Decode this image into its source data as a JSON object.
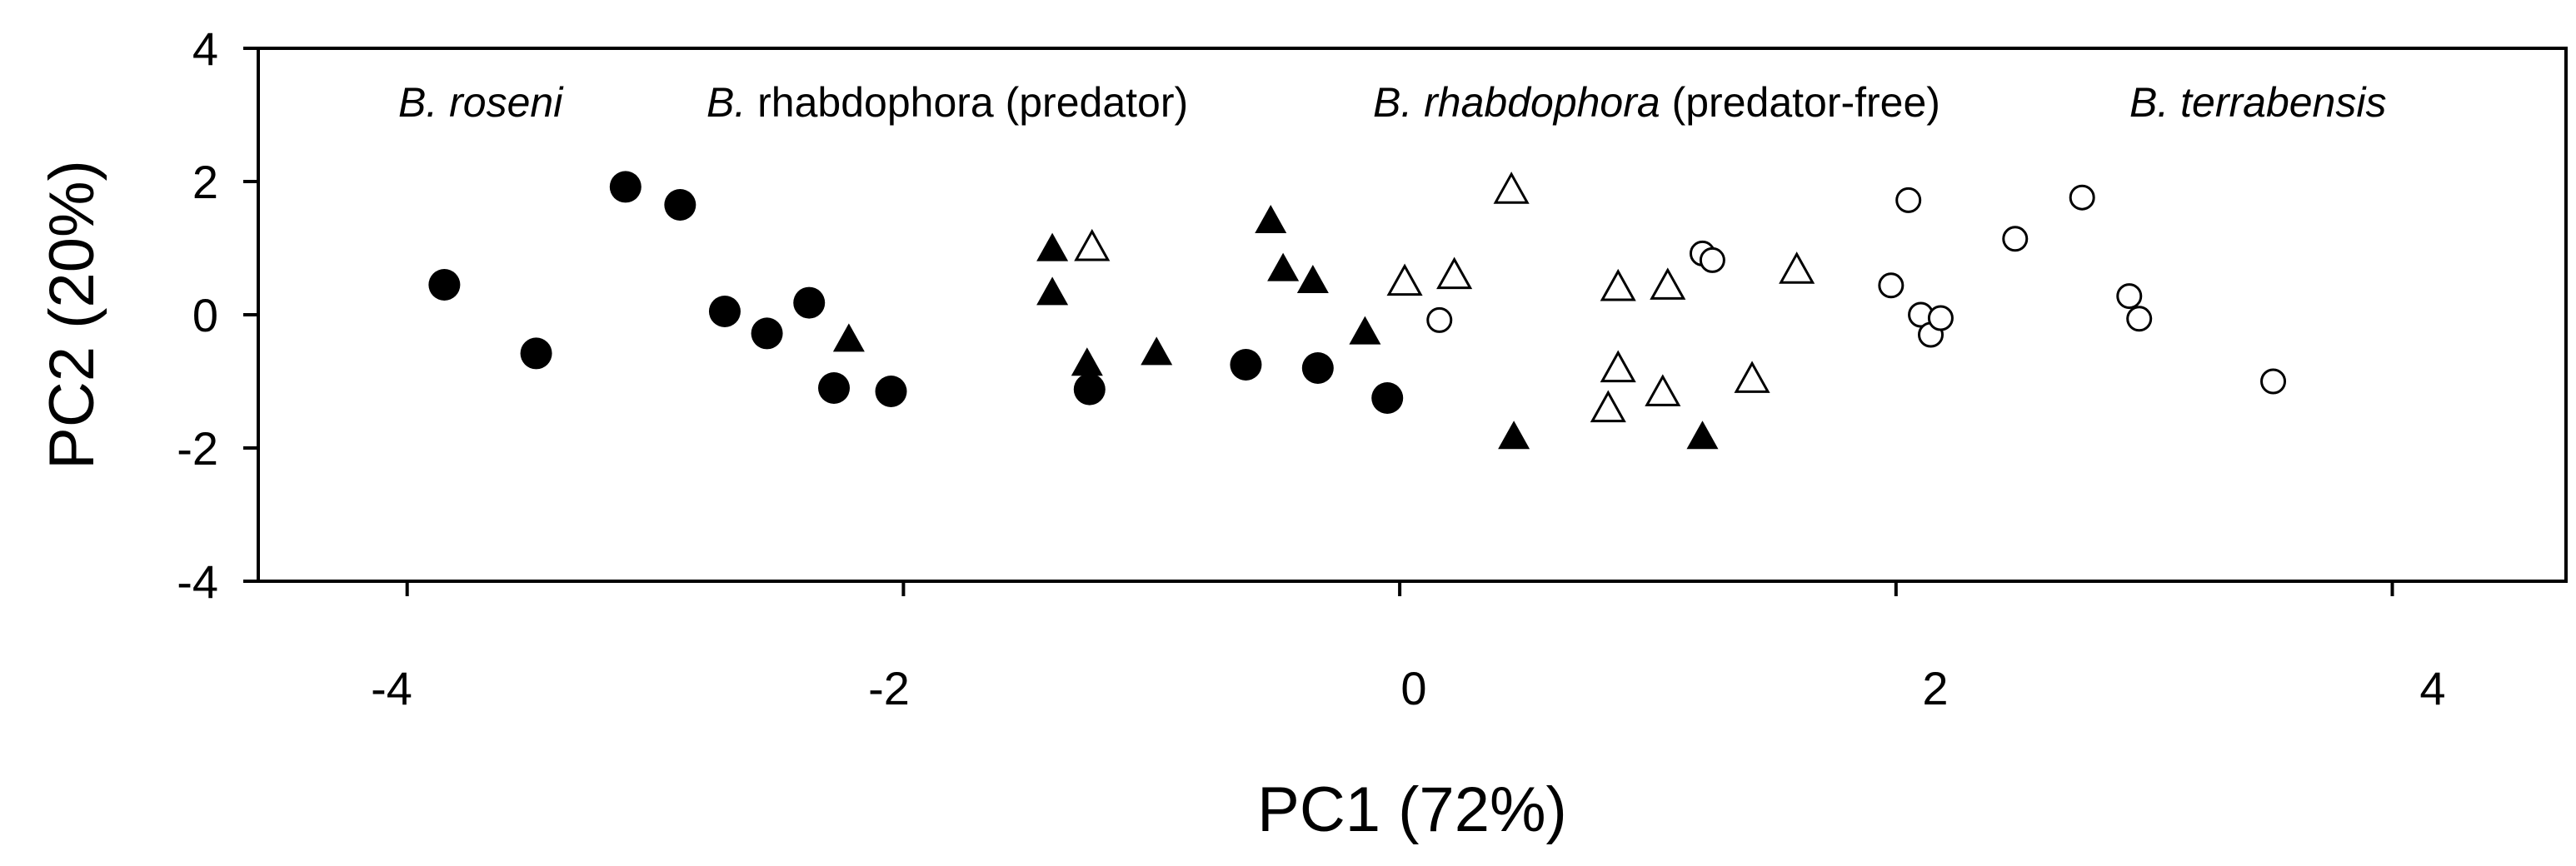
{
  "chart_data": {
    "type": "scatter",
    "xlabel": "PC1 (72%)",
    "ylabel": "PC2 (20%)",
    "xlim": [
      -4.6,
      4.7
    ],
    "ylim": [
      -4,
      4
    ],
    "x_ticks": [
      "-4",
      "-2",
      "0",
      "2",
      "4"
    ],
    "y_ticks": [
      "4",
      "2",
      "0",
      "-2",
      "-4"
    ],
    "grid": false,
    "group_labels": [
      {
        "italic_part": "B. roseni",
        "plain_part": ""
      },
      {
        "italic_part": "B.",
        "plain_part": " rhabdophora (predator)"
      },
      {
        "italic_part": "B. rhabdophora",
        "plain_part": " (predator-free)"
      },
      {
        "italic_part": "B. terrabensis",
        "plain_part": ""
      }
    ],
    "series": [
      {
        "marker": "filled-circle",
        "points": [
          [
            -3.85,
            0.45
          ],
          [
            -3.48,
            -0.58
          ],
          [
            -3.12,
            1.92
          ],
          [
            -2.9,
            1.65
          ],
          [
            -2.72,
            0.05
          ],
          [
            -2.55,
            -0.28
          ],
          [
            -2.38,
            0.18
          ],
          [
            -2.28,
            -1.1
          ],
          [
            -2.05,
            -1.15
          ],
          [
            -1.25,
            -1.12
          ],
          [
            -0.62,
            -0.75
          ],
          [
            -0.33,
            -0.8
          ],
          [
            -0.05,
            -1.25
          ]
        ]
      },
      {
        "marker": "filled-triangle",
        "points": [
          [
            -2.22,
            -0.38
          ],
          [
            -1.4,
            0.98
          ],
          [
            -1.4,
            0.32
          ],
          [
            -1.26,
            -0.74
          ],
          [
            -0.98,
            -0.58
          ],
          [
            -0.52,
            1.4
          ],
          [
            -0.47,
            0.68
          ],
          [
            -0.35,
            0.5
          ],
          [
            -0.14,
            -0.27
          ],
          [
            0.46,
            -1.84
          ],
          [
            1.22,
            -1.84
          ]
        ]
      },
      {
        "marker": "open-triangle",
        "points": [
          [
            -1.24,
            1.0
          ],
          [
            0.02,
            0.48
          ],
          [
            0.22,
            0.58
          ],
          [
            0.45,
            1.86
          ],
          [
            0.88,
            0.4
          ],
          [
            1.08,
            0.42
          ],
          [
            0.88,
            -0.82
          ],
          [
            0.84,
            -1.42
          ],
          [
            1.06,
            -1.18
          ],
          [
            1.42,
            -0.98
          ],
          [
            1.6,
            0.66
          ]
        ]
      },
      {
        "marker": "open-circle",
        "points": [
          [
            0.16,
            -0.08
          ],
          [
            1.22,
            0.92
          ],
          [
            1.26,
            0.82
          ],
          [
            1.98,
            0.44
          ],
          [
            2.05,
            1.72
          ],
          [
            2.1,
            0.0
          ],
          [
            2.14,
            -0.3
          ],
          [
            2.18,
            -0.05
          ],
          [
            2.48,
            1.14
          ],
          [
            2.75,
            1.76
          ],
          [
            2.94,
            0.28
          ],
          [
            2.98,
            -0.06
          ],
          [
            3.52,
            -1.0
          ]
        ]
      }
    ]
  }
}
